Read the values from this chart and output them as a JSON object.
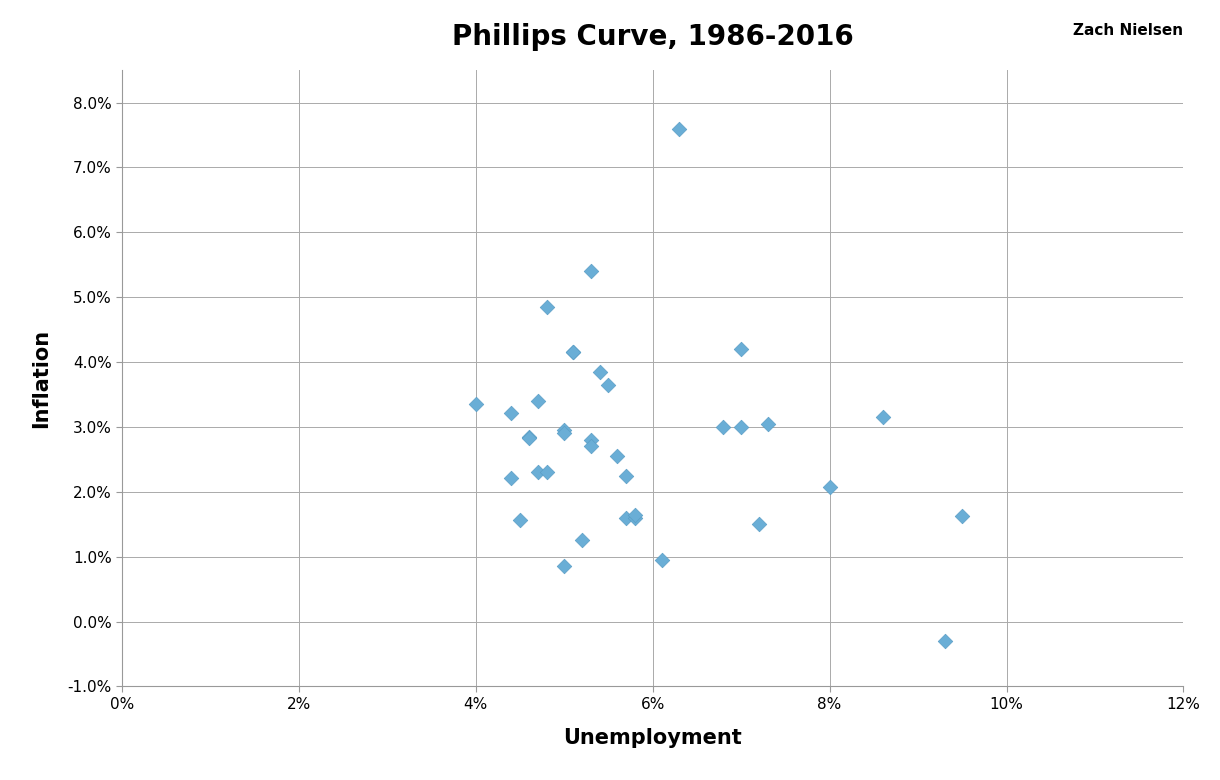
{
  "title": "Phillips Curve, 1986-2016",
  "xlabel": "Unemployment",
  "ylabel": "Inflation",
  "watermark": "Zach Nielsen",
  "xlim": [
    0,
    0.12
  ],
  "ylim": [
    -0.01,
    0.085
  ],
  "xticks": [
    0,
    0.02,
    0.04,
    0.06,
    0.08,
    0.1,
    0.12
  ],
  "yticks": [
    -0.01,
    0.0,
    0.01,
    0.02,
    0.03,
    0.04,
    0.05,
    0.06,
    0.07,
    0.08
  ],
  "ytick_labels": [
    "-1.0%",
    "0.0%",
    "1.0%",
    "2.0%",
    "3.0%",
    "4.0%",
    "5.0%",
    "6.0%",
    "7.0%",
    "8.0%"
  ],
  "xtick_labels": [
    "0%",
    "2%",
    "4%",
    "6%",
    "8%",
    "10%",
    "12%"
  ],
  "marker_color": "#6aaed6",
  "marker_edge_color": "#5a9ec6",
  "background_color": "#ffffff",
  "grid_color": "#aaaaaa",
  "data_points": [
    [
      0.04,
      0.0335
    ],
    [
      0.044,
      0.0222
    ],
    [
      0.044,
      0.0322
    ],
    [
      0.045,
      0.0157
    ],
    [
      0.046,
      0.0285
    ],
    [
      0.046,
      0.0283
    ],
    [
      0.047,
      0.023
    ],
    [
      0.047,
      0.034
    ],
    [
      0.048,
      0.023
    ],
    [
      0.048,
      0.0485
    ],
    [
      0.05,
      0.0295
    ],
    [
      0.05,
      0.029
    ],
    [
      0.05,
      0.0085
    ],
    [
      0.051,
      0.0415
    ],
    [
      0.051,
      0.0415
    ],
    [
      0.052,
      0.0125
    ],
    [
      0.053,
      0.054
    ],
    [
      0.053,
      0.028
    ],
    [
      0.053,
      0.027
    ],
    [
      0.054,
      0.0385
    ],
    [
      0.055,
      0.0365
    ],
    [
      0.056,
      0.0255
    ],
    [
      0.057,
      0.0225
    ],
    [
      0.057,
      0.016
    ],
    [
      0.058,
      0.016
    ],
    [
      0.058,
      0.0165
    ],
    [
      0.061,
      0.0095
    ],
    [
      0.063,
      0.076
    ],
    [
      0.068,
      0.03
    ],
    [
      0.07,
      0.03
    ],
    [
      0.07,
      0.042
    ],
    [
      0.072,
      0.015
    ],
    [
      0.073,
      0.0305
    ],
    [
      0.08,
      0.0208
    ],
    [
      0.086,
      0.0315
    ],
    [
      0.093,
      -0.003
    ],
    [
      0.095,
      0.0163
    ]
  ]
}
